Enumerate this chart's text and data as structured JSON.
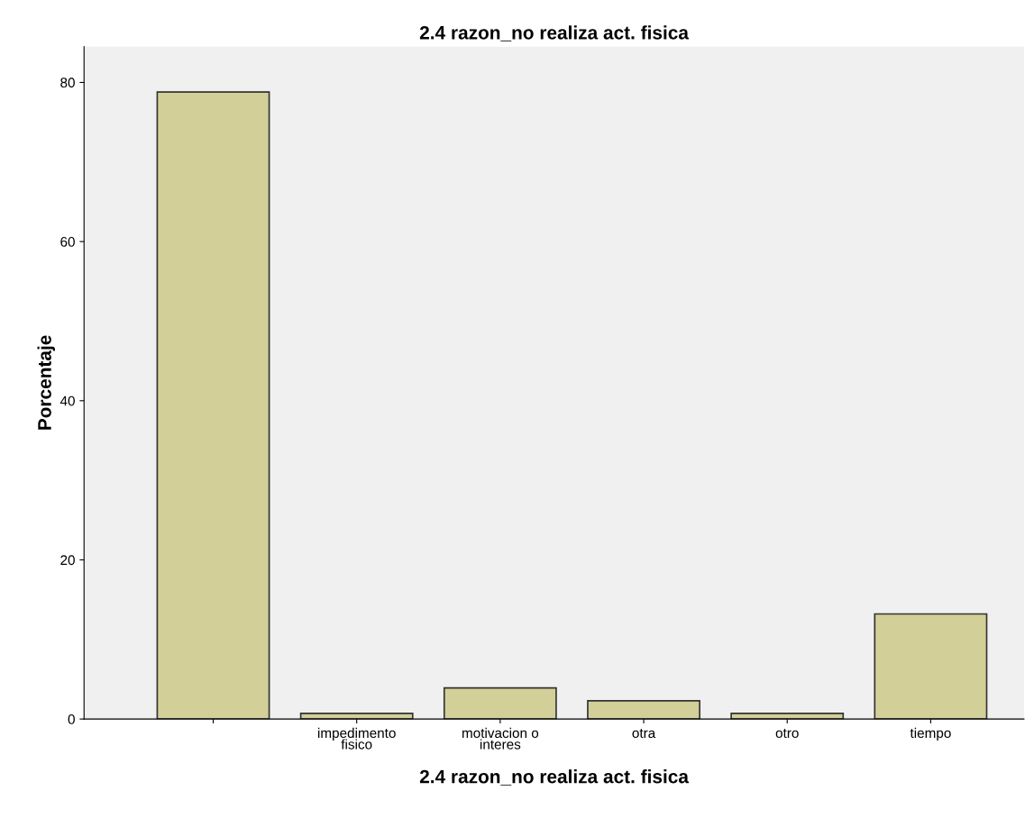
{
  "chart_data": {
    "type": "bar",
    "title": "2.4 razon_no realiza act. fisica",
    "xlabel": "2.4 razon_no realiza act. fisica",
    "ylabel": "Porcentaje",
    "categories": [
      null,
      "impedimento\nfisico",
      "motivacion o\ninteres",
      "otra",
      "otro",
      "tiempo"
    ],
    "values": [
      78.8,
      0.7,
      3.9,
      2.3,
      0.7,
      13.2
    ],
    "color": "#d2cf98",
    "ylim": [
      0,
      84.5
    ],
    "yticks": [
      0,
      20,
      40,
      60,
      80
    ],
    "grid": false
  }
}
